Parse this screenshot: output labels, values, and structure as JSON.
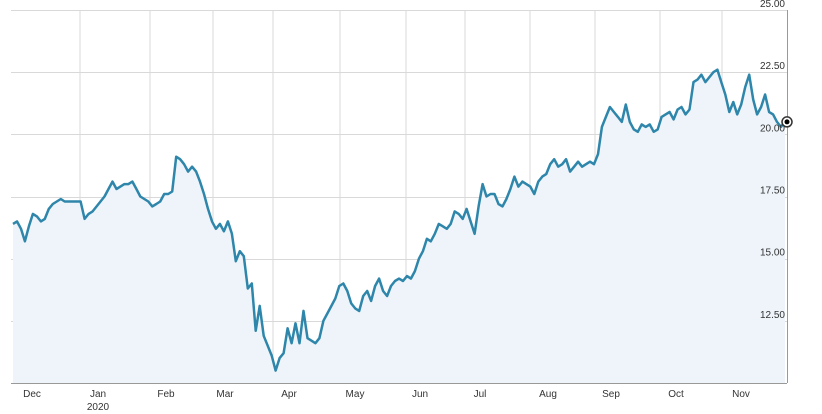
{
  "chart_data": {
    "type": "area",
    "title": "",
    "xlabel": "",
    "ylabel": "",
    "grid": true,
    "y_axis_side": "right",
    "ylim": [
      10,
      25
    ],
    "y_ticks": [
      "12.50",
      "15.00",
      "17.50",
      "20.00",
      "22.50",
      "25.00"
    ],
    "x_ticks": [
      "Dec",
      "Jan",
      "Feb",
      "Mar",
      "Apr",
      "May",
      "Jun",
      "Jul",
      "Aug",
      "Sep",
      "Oct",
      "Nov"
    ],
    "year_label": "2020",
    "colors": {
      "line": "#2e86ab",
      "fill": "#eef4fa",
      "grid": "#d9d9d9",
      "axis": "#999999"
    },
    "series": [
      {
        "values": [
          16.4,
          16.5,
          16.2,
          15.7,
          16.3,
          16.8,
          16.7,
          16.5,
          16.6,
          17.0,
          17.2,
          17.3,
          17.4,
          17.3,
          17.3,
          17.3,
          17.3,
          17.3,
          16.6,
          16.8,
          16.9,
          17.1,
          17.3,
          17.5,
          17.8,
          18.1,
          17.8,
          17.9,
          18.0,
          18.0,
          18.1,
          17.8,
          17.5,
          17.4,
          17.3,
          17.1,
          17.2,
          17.3,
          17.6,
          17.6,
          17.7,
          19.1,
          19.0,
          18.8,
          18.5,
          18.7,
          18.5,
          18.1,
          17.6,
          17.0,
          16.5,
          16.2,
          16.4,
          16.1,
          16.5,
          16.0,
          14.9,
          15.3,
          15.1,
          13.8,
          14.0,
          12.1,
          13.1,
          11.9,
          11.5,
          11.1,
          10.5,
          11.0,
          11.2,
          12.2,
          11.6,
          12.4,
          11.6,
          12.9,
          11.8,
          11.7,
          11.6,
          11.8,
          12.5,
          12.8,
          13.1,
          13.4,
          13.9,
          14.0,
          13.7,
          13.2,
          13.0,
          12.9,
          13.5,
          13.7,
          13.3,
          13.9,
          14.2,
          13.7,
          13.5,
          13.9,
          14.1,
          14.2,
          14.1,
          14.3,
          14.2,
          14.5,
          15.0,
          15.3,
          15.8,
          15.7,
          16.0,
          16.4,
          16.3,
          16.2,
          16.4,
          16.9,
          16.8,
          16.6,
          17.0,
          16.5,
          16.0,
          17.1,
          18.0,
          17.5,
          17.6,
          17.6,
          17.2,
          17.1,
          17.4,
          17.8,
          18.3,
          17.9,
          18.1,
          18.0,
          17.9,
          17.6,
          18.1,
          18.3,
          18.4,
          18.8,
          19.0,
          18.7,
          18.8,
          19.0,
          18.5,
          18.7,
          18.9,
          18.7,
          18.8,
          18.9,
          18.8,
          19.2,
          20.3,
          20.7,
          21.1,
          20.9,
          20.7,
          20.5,
          21.2,
          20.5,
          20.2,
          20.1,
          20.4,
          20.3,
          20.4,
          20.1,
          20.2,
          20.7,
          20.8,
          20.9,
          20.6,
          21.0,
          21.1,
          20.8,
          21.0,
          22.1,
          22.2,
          22.4,
          22.1,
          22.3,
          22.5,
          22.6,
          22.1,
          21.6,
          20.9,
          21.3,
          20.8,
          21.2,
          21.9,
          22.4,
          21.4,
          20.8,
          21.1,
          21.6,
          20.9,
          20.8,
          20.5,
          20.3,
          20.5
        ]
      }
    ]
  }
}
